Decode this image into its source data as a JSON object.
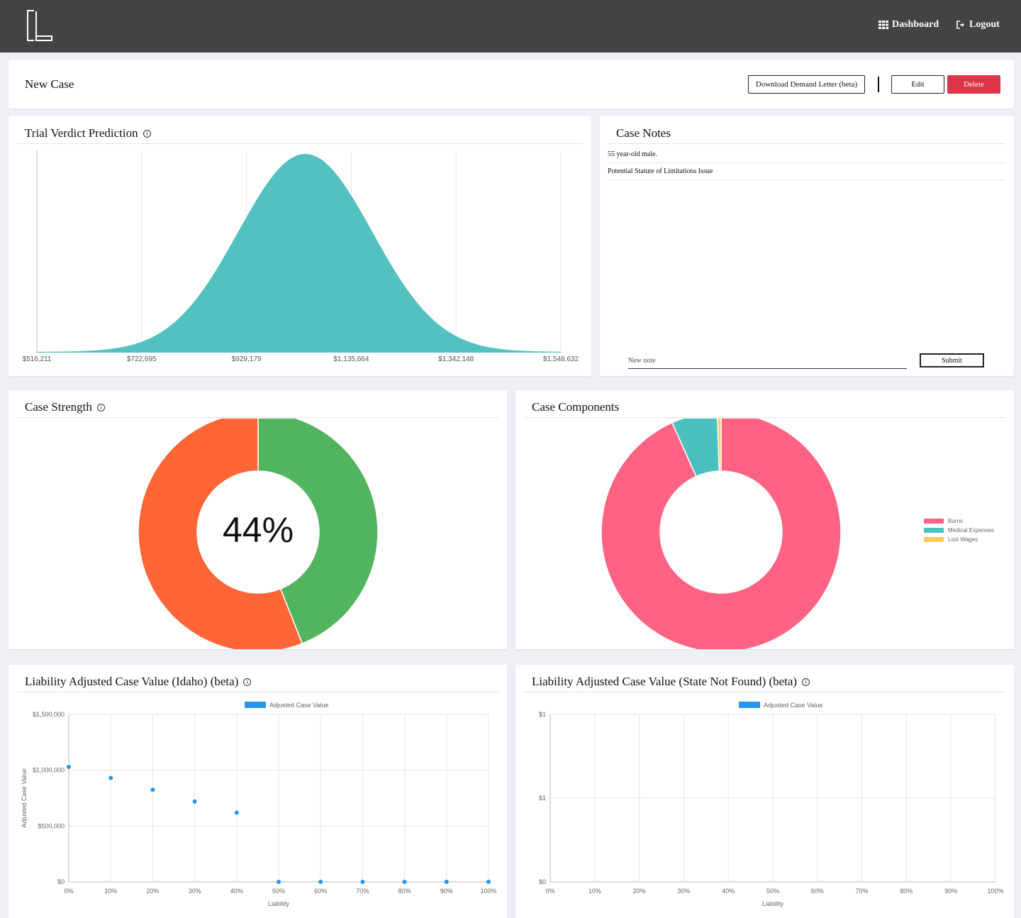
{
  "header": {
    "dashboard_label": "Dashboard",
    "logout_label": "Logout",
    "dashboard_icon": "grid-icon",
    "logout_icon": "sign-out-icon"
  },
  "case": {
    "title": "New Case",
    "download_label": "Download Demand Letter (beta)",
    "edit_label": "Edit",
    "delete_label": "Delete"
  },
  "verdict": {
    "title": "Trial Verdict Prediction",
    "color": "#52c1c0",
    "chart_data": {
      "type": "area",
      "x_ticks": [
        "$516,211",
        "$722,695",
        "$929,179",
        "$1,135,664",
        "$1,342,148",
        "$1,548,632"
      ],
      "x_min": 516211,
      "x_max": 1548632,
      "mean": 1045000,
      "grid": true
    }
  },
  "notes": {
    "title": "Case Notes",
    "items": [
      "55 year-old male.",
      "Potential Statute of Limitations Issue"
    ],
    "input_placeholder": "New note",
    "submit_label": "Submit"
  },
  "strength": {
    "title": "Case Strength",
    "center_label": "44%",
    "chart_data": {
      "type": "pie",
      "values": [
        44,
        56
      ],
      "colors": [
        "#52b45f",
        "#fe6537"
      ]
    }
  },
  "components": {
    "title": "Case Components",
    "chart_data": {
      "type": "pie",
      "categories": [
        "Burns",
        "Medical Expenses",
        "Lost Wages"
      ],
      "values": [
        93.3,
        6.2,
        0.5
      ],
      "colors": [
        "#ff6384",
        "#4bc0c0",
        "#ffcd56"
      ],
      "legend": "right"
    }
  },
  "liability_idaho": {
    "title": "Liability Adjusted Case Value (Idaho) (beta)",
    "chart_data": {
      "type": "scatter",
      "series": [
        {
          "name": "Adjusted Case Value",
          "values": [
            1030000,
            930000,
            825000,
            720000,
            620000,
            0,
            0,
            0,
            0,
            0,
            0
          ]
        }
      ],
      "x": [
        "0%",
        "10%",
        "20%",
        "30%",
        "40%",
        "50%",
        "60%",
        "70%",
        "80%",
        "90%",
        "100%"
      ],
      "y_ticks": [
        "$1,500,000",
        "$1,000,000",
        "$500,000",
        "$0"
      ],
      "ylim": [
        0,
        1500000
      ],
      "xlabel": "Liability",
      "ylabel": "Adjusted Case Value",
      "color": "#2196f3",
      "legend": "top"
    }
  },
  "liability_other": {
    "title": "Liability Adjusted Case Value (State Not Found) (beta)",
    "chart_data": {
      "type": "scatter",
      "series": [
        {
          "name": "Adjusted Case Value",
          "values": []
        }
      ],
      "x": [
        "0%",
        "10%",
        "20%",
        "30%",
        "40%",
        "50%",
        "60%",
        "70%",
        "80%",
        "90%",
        "100%"
      ],
      "y_ticks": [
        "$1",
        "$1",
        "$0"
      ],
      "xlabel": "Liability",
      "ylabel": "Adjusted Case Value",
      "color": "#2196f3",
      "legend": "top"
    }
  }
}
